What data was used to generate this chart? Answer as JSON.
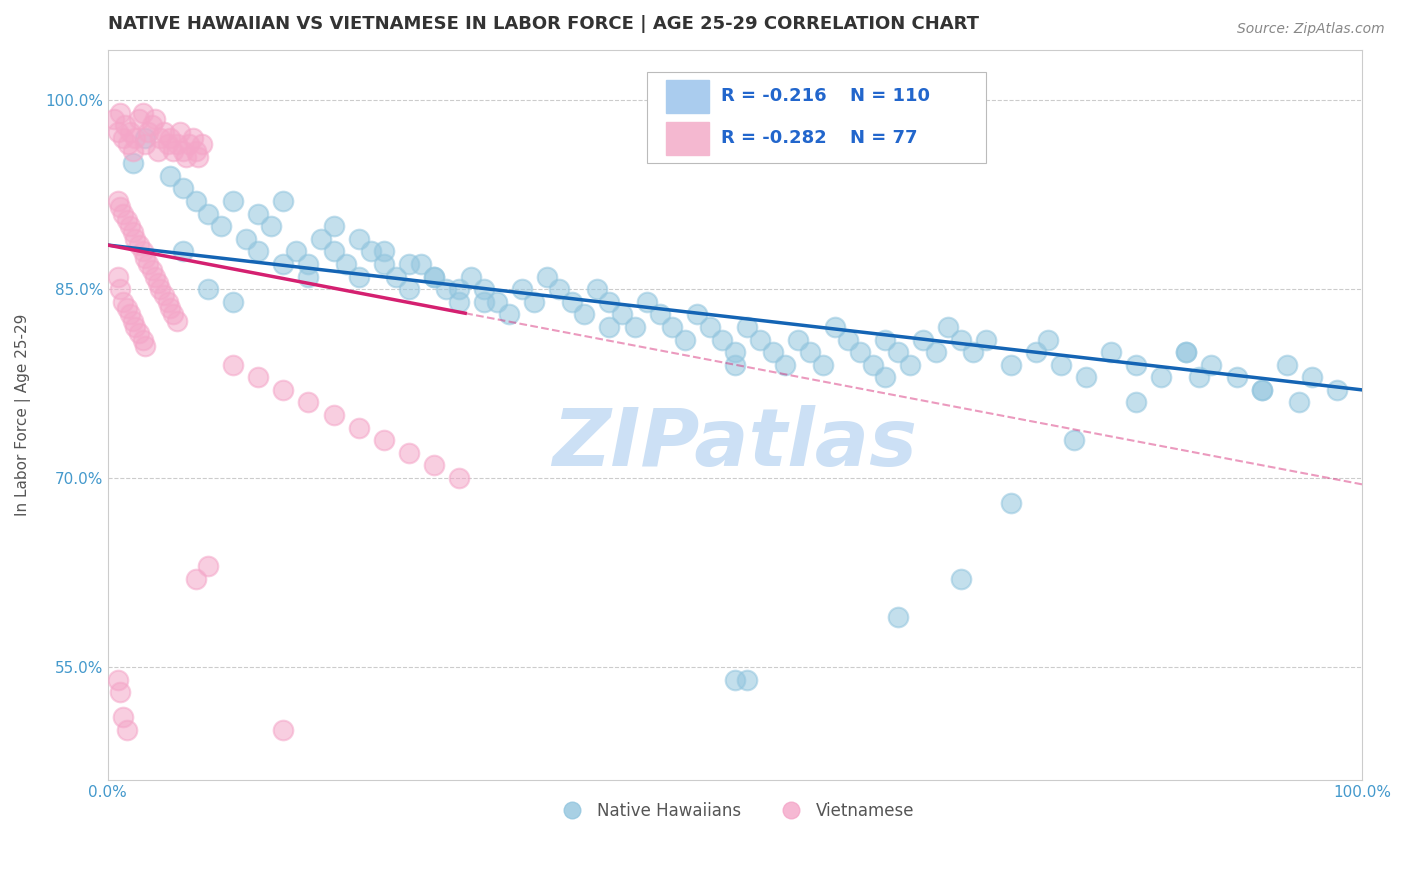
{
  "title": "NATIVE HAWAIIAN VS VIETNAMESE IN LABOR FORCE | AGE 25-29 CORRELATION CHART",
  "source": "Source: ZipAtlas.com",
  "ylabel": "In Labor Force | Age 25-29",
  "xlim": [
    0.0,
    1.0
  ],
  "ylim": [
    0.46,
    1.04
  ],
  "yticks": [
    0.55,
    0.7,
    0.85,
    1.0
  ],
  "ytick_labels": [
    "55.0%",
    "70.0%",
    "85.0%",
    "100.0%"
  ],
  "xtick_labels": [
    "0.0%",
    "100.0%"
  ],
  "xticks": [
    0.0,
    1.0
  ],
  "legend_R_blue": "-0.216",
  "legend_N_blue": "110",
  "legend_R_pink": "-0.282",
  "legend_N_pink": "77",
  "blue_color": "#92c5de",
  "pink_color": "#f4a6c8",
  "trend_blue": "#1464b4",
  "trend_pink": "#d42070",
  "watermark": "ZIPatlas",
  "watermark_color": "#cce0f5",
  "title_fontsize": 13,
  "label_fontsize": 11,
  "tick_fontsize": 11,
  "legend_fontsize": 13,
  "blue_trend_start_y": 0.885,
  "blue_trend_end_y": 0.77,
  "pink_trend_start_y": 0.885,
  "pink_trend_end_y": 0.695,
  "pink_trend_solid_end_x": 0.285,
  "blue_x": [
    0.02,
    0.03,
    0.05,
    0.06,
    0.07,
    0.08,
    0.09,
    0.1,
    0.11,
    0.12,
    0.13,
    0.14,
    0.15,
    0.16,
    0.17,
    0.18,
    0.19,
    0.2,
    0.21,
    0.22,
    0.23,
    0.24,
    0.25,
    0.26,
    0.27,
    0.28,
    0.29,
    0.3,
    0.31,
    0.32,
    0.33,
    0.34,
    0.35,
    0.36,
    0.37,
    0.38,
    0.39,
    0.4,
    0.41,
    0.42,
    0.43,
    0.44,
    0.45,
    0.46,
    0.47,
    0.48,
    0.49,
    0.5,
    0.51,
    0.52,
    0.53,
    0.54,
    0.55,
    0.56,
    0.57,
    0.58,
    0.59,
    0.6,
    0.61,
    0.62,
    0.63,
    0.64,
    0.65,
    0.66,
    0.67,
    0.68,
    0.69,
    0.7,
    0.72,
    0.74,
    0.76,
    0.78,
    0.8,
    0.82,
    0.84,
    0.86,
    0.88,
    0.9,
    0.92,
    0.94,
    0.96,
    0.98,
    0.06,
    0.08,
    0.1,
    0.12,
    0.14,
    0.16,
    0.18,
    0.2,
    0.22,
    0.24,
    0.26,
    0.28,
    0.3,
    0.4,
    0.5,
    0.62,
    0.5,
    0.51,
    0.75,
    0.86,
    0.92,
    0.63,
    0.68,
    0.72,
    0.77,
    0.82,
    0.87,
    0.95
  ],
  "blue_y": [
    0.95,
    0.97,
    0.94,
    0.93,
    0.92,
    0.91,
    0.9,
    0.92,
    0.89,
    0.91,
    0.9,
    0.92,
    0.88,
    0.87,
    0.89,
    0.88,
    0.87,
    0.86,
    0.88,
    0.87,
    0.86,
    0.85,
    0.87,
    0.86,
    0.85,
    0.84,
    0.86,
    0.85,
    0.84,
    0.83,
    0.85,
    0.84,
    0.86,
    0.85,
    0.84,
    0.83,
    0.85,
    0.84,
    0.83,
    0.82,
    0.84,
    0.83,
    0.82,
    0.81,
    0.83,
    0.82,
    0.81,
    0.8,
    0.82,
    0.81,
    0.8,
    0.79,
    0.81,
    0.8,
    0.79,
    0.82,
    0.81,
    0.8,
    0.79,
    0.81,
    0.8,
    0.79,
    0.81,
    0.8,
    0.82,
    0.81,
    0.8,
    0.81,
    0.79,
    0.8,
    0.79,
    0.78,
    0.8,
    0.79,
    0.78,
    0.8,
    0.79,
    0.78,
    0.77,
    0.79,
    0.78,
    0.77,
    0.88,
    0.85,
    0.84,
    0.88,
    0.87,
    0.86,
    0.9,
    0.89,
    0.88,
    0.87,
    0.86,
    0.85,
    0.84,
    0.82,
    0.79,
    0.78,
    0.54,
    0.54,
    0.81,
    0.8,
    0.77,
    0.59,
    0.62,
    0.68,
    0.73,
    0.76,
    0.78,
    0.76
  ],
  "pink_x": [
    0.005,
    0.008,
    0.01,
    0.012,
    0.014,
    0.016,
    0.018,
    0.02,
    0.022,
    0.025,
    0.028,
    0.03,
    0.032,
    0.035,
    0.038,
    0.04,
    0.042,
    0.045,
    0.048,
    0.05,
    0.052,
    0.055,
    0.058,
    0.06,
    0.062,
    0.065,
    0.068,
    0.07,
    0.072,
    0.075,
    0.008,
    0.01,
    0.012,
    0.015,
    0.018,
    0.02,
    0.022,
    0.025,
    0.028,
    0.03,
    0.032,
    0.035,
    0.038,
    0.04,
    0.042,
    0.045,
    0.048,
    0.05,
    0.052,
    0.055,
    0.008,
    0.01,
    0.012,
    0.015,
    0.018,
    0.02,
    0.022,
    0.025,
    0.028,
    0.03,
    0.1,
    0.12,
    0.14,
    0.16,
    0.18,
    0.2,
    0.22,
    0.24,
    0.26,
    0.28,
    0.008,
    0.01,
    0.012,
    0.015,
    0.07,
    0.08,
    0.14
  ],
  "pink_y": [
    0.985,
    0.975,
    0.99,
    0.97,
    0.98,
    0.965,
    0.975,
    0.96,
    0.97,
    0.985,
    0.99,
    0.965,
    0.975,
    0.98,
    0.985,
    0.96,
    0.97,
    0.975,
    0.965,
    0.97,
    0.96,
    0.965,
    0.975,
    0.96,
    0.955,
    0.965,
    0.97,
    0.96,
    0.955,
    0.965,
    0.92,
    0.915,
    0.91,
    0.905,
    0.9,
    0.895,
    0.89,
    0.885,
    0.88,
    0.875,
    0.87,
    0.865,
    0.86,
    0.855,
    0.85,
    0.845,
    0.84,
    0.835,
    0.83,
    0.825,
    0.86,
    0.85,
    0.84,
    0.835,
    0.83,
    0.825,
    0.82,
    0.815,
    0.81,
    0.805,
    0.79,
    0.78,
    0.77,
    0.76,
    0.75,
    0.74,
    0.73,
    0.72,
    0.71,
    0.7,
    0.54,
    0.53,
    0.51,
    0.5,
    0.62,
    0.63,
    0.5
  ]
}
